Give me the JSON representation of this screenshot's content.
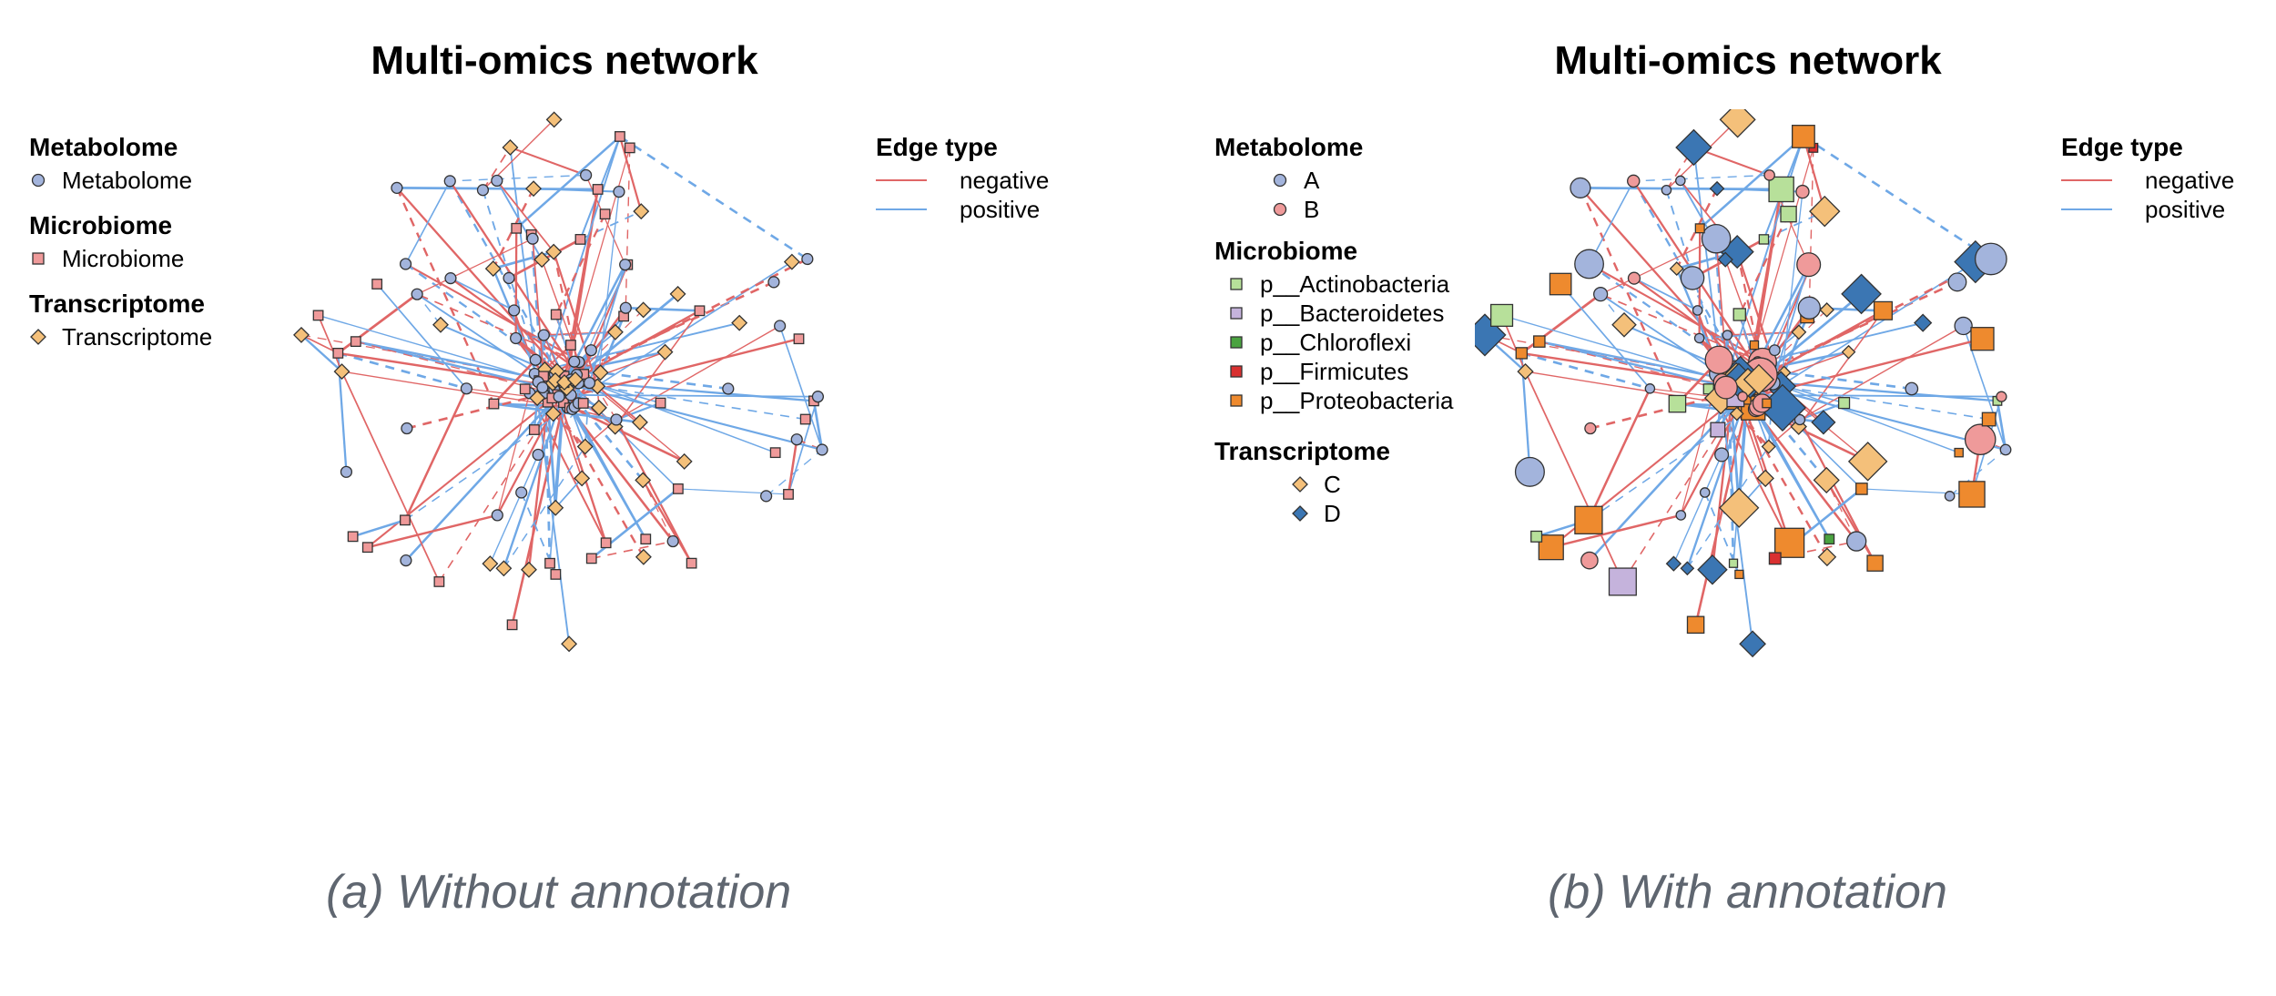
{
  "panels": [
    {
      "title": "Multi-omics network",
      "caption": "(a) Without annotation",
      "legend": {
        "metabolome": {
          "title": "Metabolome",
          "items": [
            "Metabolome"
          ]
        },
        "microbiome": {
          "title": "Microbiome",
          "items": [
            "Microbiome"
          ]
        },
        "transcriptome": {
          "title": "Transcriptome",
          "items": [
            "Transcriptome"
          ]
        }
      },
      "edge_legend": {
        "title": "Edge type",
        "items": [
          "negative",
          "positive"
        ]
      }
    },
    {
      "title": "Multi-omics network",
      "caption": "(b) With annotation",
      "legend": {
        "metabolome": {
          "title": "Metabolome",
          "items": [
            "A",
            "B"
          ]
        },
        "microbiome": {
          "title": "Microbiome",
          "items": [
            "p__Actinobacteria",
            "p__Bacteroidetes",
            "p__Chloroflexi",
            "p__Firmicutes",
            "p__Proteobacteria"
          ]
        },
        "transcriptome": {
          "title": "Transcriptome",
          "items": [
            "C",
            "D"
          ]
        }
      },
      "edge_legend": {
        "title": "Edge type",
        "items": [
          "negative",
          "positive"
        ]
      }
    }
  ],
  "colors": {
    "negative": "#e06666",
    "positive": "#6fa8e6",
    "metabolome": "#a3b4dc",
    "microbiome": "#ef9a9a",
    "transcriptome": "#f4c07a",
    "A": "#a3b4dc",
    "B": "#ef9a9a",
    "p__Actinobacteria": "#b7e09a",
    "p__Bacteroidetes": "#c5b3dc",
    "p__Chloroflexi": "#4aa340",
    "p__Firmicutes": "#d93030",
    "p__Proteobacteria": "#ee8a2e",
    "C": "#f4c07a",
    "D": "#3b76b3",
    "caption": "#5f6670"
  }
}
